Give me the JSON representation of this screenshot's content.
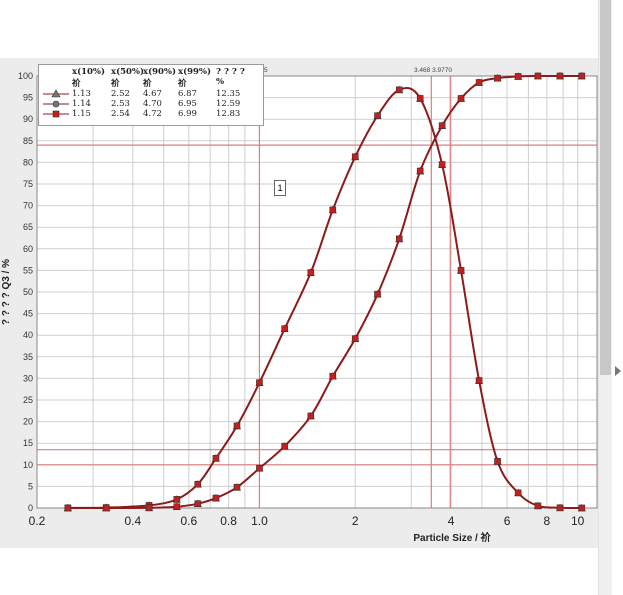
{
  "chart_data": {
    "type": "line",
    "x_scale": "log",
    "xlim": [
      0.2,
      11.5
    ],
    "ylim": [
      0,
      100
    ],
    "xlabel": "Particle Size / 祄",
    "ylabel": "? ? ? ? Q3 / %",
    "x_ticks": [
      "0.2",
      "0.4",
      "0.6",
      "0.8",
      "1.0",
      "2",
      "4",
      "6",
      "8",
      "10"
    ],
    "y_ticks": [
      "0",
      "5",
      "10",
      "15",
      "20",
      "25",
      "30",
      "35",
      "40",
      "45",
      "50",
      "55",
      "60",
      "65",
      "70",
      "75",
      "80",
      "85",
      "90",
      "95",
      "100"
    ],
    "grid": true,
    "series": [
      {
        "x": [
          0.25,
          0.33,
          0.45,
          0.55,
          0.64,
          0.73,
          0.85,
          1.0,
          1.2,
          1.45,
          1.7,
          2.0,
          2.35,
          2.75,
          3.2,
          3.75,
          4.3,
          4.9,
          5.6,
          6.5,
          7.5,
          8.8,
          10.3
        ],
        "y": [
          0.03,
          0.1,
          0.6,
          2,
          5.5,
          11.5,
          19,
          29,
          41.5,
          54.5,
          69,
          81.3,
          90.8,
          96.8,
          94.8,
          79.5,
          55,
          29.5,
          10.8,
          3.5,
          0.5,
          0.05,
          0.0
        ]
      },
      {
        "x": [
          0.25,
          0.33,
          0.45,
          0.55,
          0.64,
          0.73,
          0.85,
          1.0,
          1.2,
          1.45,
          1.7,
          2.0,
          2.35,
          2.75,
          3.2,
          3.75,
          4.3,
          4.9,
          5.6,
          6.5,
          7.5,
          8.8,
          10.3
        ],
        "y": [
          0.0,
          0.0,
          0.05,
          0.3,
          1.0,
          2.3,
          4.8,
          9.2,
          14.3,
          21.3,
          30.5,
          39.2,
          49.5,
          62.3,
          78.0,
          88.5,
          94.8,
          98.5,
          99.5,
          99.9,
          100,
          100,
          100
        ]
      }
    ],
    "ref_lines": {
      "v": [
        1.0,
        3.468,
        3.977
      ],
      "h": [
        13.5,
        10.0,
        84.0
      ]
    },
    "annotation_top": "3.468 3.9770",
    "annotation_top_left": "5",
    "note_label": "1"
  },
  "legend": {
    "headers": [
      "x(10%)",
      "x(50%)",
      "x(90%)",
      "x(99%)",
      "? ? ? ?"
    ],
    "units": [
      "祄",
      "祄",
      "祄",
      "祄",
      "%"
    ],
    "rows": [
      {
        "marker": "triangle",
        "values": [
          "1.13",
          "2.52",
          "4.67",
          "6.87",
          "12.35"
        ]
      },
      {
        "marker": "circle",
        "values": [
          "1.14",
          "2.53",
          "4.70",
          "6.95",
          "12.59"
        ]
      },
      {
        "marker": "square",
        "values": [
          "1.15",
          "2.54",
          "4.72",
          "6.99",
          "12.83"
        ]
      }
    ]
  },
  "colors": {
    "curve": "#8c1b1b",
    "marker_fill": "#c41f1f",
    "grid": "#cfcfcf",
    "ref": "#e07d7d",
    "plot_bg": "#ffffff"
  }
}
